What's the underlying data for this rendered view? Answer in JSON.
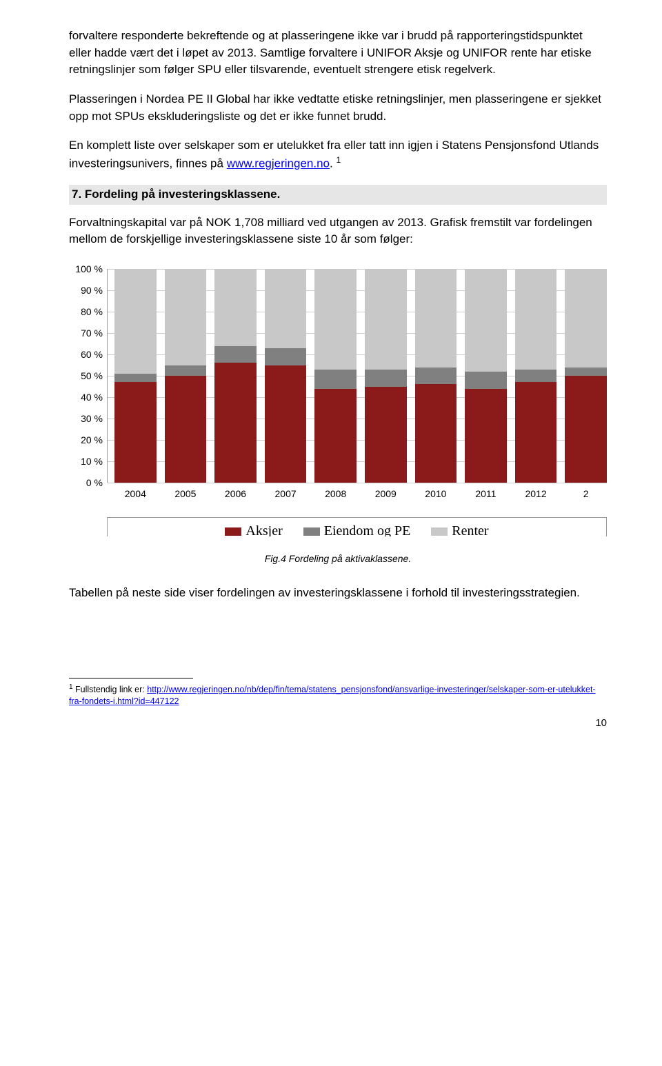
{
  "para1": "forvaltere responderte bekreftende og at plasseringene ikke var i brudd på rapporteringstidspunktet eller hadde vært det i løpet av 2013. Samtlige forvaltere i UNIFOR Aksje og UNIFOR rente har etiske retningslinjer som følger SPU eller tilsvarende, eventuelt strengere etisk regelverk.",
  "para2": "Plasseringen i Nordea PE II Global har ikke vedtatte etiske retningslinjer, men plasseringene er sjekket opp mot SPUs ekskluderingsliste og det er ikke funnet brudd.",
  "para3_pre": "En komplett liste over selskaper som er utelukket fra eller tatt inn igjen i Statens Pensjonsfond Utlands investeringsunivers, finnes på ",
  "para3_link": "www.regjeringen.no",
  "para3_post": ". ",
  "para3_sup": "1",
  "heading": "7.  Fordeling på investeringsklassene.",
  "para4": "Forvaltningskapital var på NOK 1,708 milliard ved utgangen av 2013. Grafisk fremstilt var fordelingen mellom de forskjellige investeringsklassene siste 10 år som følger:",
  "chart": {
    "type": "stacked-bar",
    "ylim": [
      0,
      100
    ],
    "ytick_step": 10,
    "yticks": [
      "0 %",
      "10 %",
      "20 %",
      "30 %",
      "40 %",
      "50 %",
      "60 %",
      "70 %",
      "80 %",
      "90 %",
      "100 %"
    ],
    "categories": [
      "2004",
      "2005",
      "2006",
      "2007",
      "2008",
      "2009",
      "2010",
      "2011",
      "2012",
      "2"
    ],
    "colors": {
      "aksjer": "#8b1a1a",
      "eiendom": "#808080",
      "renter": "#c8c8c8",
      "grid": "#cccccc",
      "axis": "#999999",
      "bg": "#ffffff"
    },
    "series": [
      {
        "aksjer": 47,
        "eiendom": 4,
        "renter": 49
      },
      {
        "aksjer": 50,
        "eiendom": 5,
        "renter": 45
      },
      {
        "aksjer": 56,
        "eiendom": 8,
        "renter": 36
      },
      {
        "aksjer": 55,
        "eiendom": 8,
        "renter": 37
      },
      {
        "aksjer": 44,
        "eiendom": 9,
        "renter": 47
      },
      {
        "aksjer": 45,
        "eiendom": 8,
        "renter": 47
      },
      {
        "aksjer": 46,
        "eiendom": 8,
        "renter": 46
      },
      {
        "aksjer": 44,
        "eiendom": 8,
        "renter": 48
      },
      {
        "aksjer": 47,
        "eiendom": 6,
        "renter": 47
      },
      {
        "aksjer": 50,
        "eiendom": 4,
        "renter": 46
      }
    ],
    "legend": [
      {
        "label": "Aksjer",
        "color": "#8b1a1a"
      },
      {
        "label": "Eiendom og PE",
        "color": "#808080"
      },
      {
        "label": "Renter",
        "color": "#c8c8c8"
      }
    ]
  },
  "fig_caption": "Fig.4 Fordeling på aktivaklassene.",
  "para5": "Tabellen på neste side viser fordelingen av investeringsklassene i forhold til investeringsstrategien.",
  "footnote_num": "1",
  "footnote_pre": " Fullstendig link er: ",
  "footnote_link": "http://www.regjeringen.no/nb/dep/fin/tema/statens_pensjonsfond/ansvarlige-investeringer/selskaper-som-er-utelukket-fra-fondets-i.html?id=447122",
  "page_number": "10"
}
